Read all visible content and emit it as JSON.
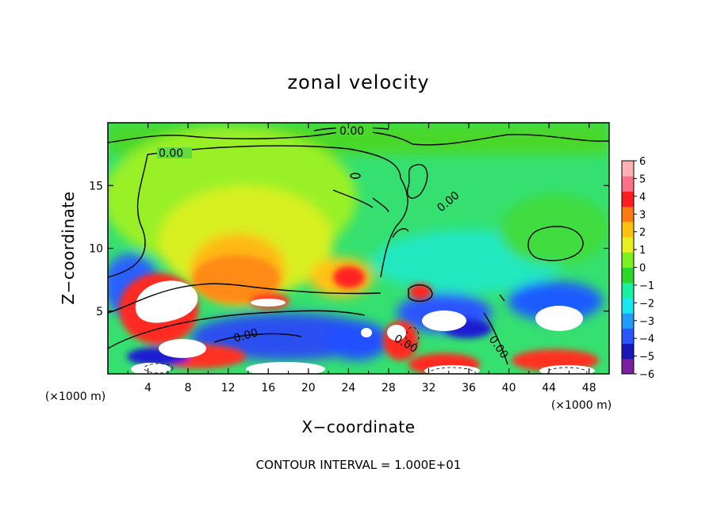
{
  "chart_data": {
    "type": "heatmap",
    "title": "zonal velocity",
    "xlabel": "X−coordinate",
    "ylabel": "Z−coordinate",
    "x_unit_label": "(×1000 m)",
    "y_unit_label": "(×1000 m)",
    "x_ticks": [
      4,
      8,
      12,
      16,
      20,
      24,
      28,
      32,
      36,
      40,
      44,
      48
    ],
    "y_ticks": [
      5,
      10,
      15
    ],
    "xlim": [
      0,
      50
    ],
    "ylim": [
      0,
      20
    ],
    "footer_note": "CONTOUR INTERVAL = 1.000E+01",
    "colorbar": {
      "ticks": [
        "6",
        "5",
        "4",
        "3",
        "2",
        "1",
        "0",
        "−1",
        "−2",
        "−3",
        "−4",
        "−5",
        "−6"
      ],
      "range": [
        -6,
        6
      ],
      "colors": [
        "#7a1fa0",
        "#1818b8",
        "#2b55ff",
        "#1f9cff",
        "#18e8f0",
        "#19f0a0",
        "#2ad82a",
        "#7cf020",
        "#e8f020",
        "#ffc210",
        "#ff7a10",
        "#ff1c20",
        "#ff6f8a",
        "#ffb0b0"
      ]
    },
    "contour_labels": [
      "0.00",
      "0.00",
      "0.00",
      "0.00",
      "0.00",
      "0.00"
    ],
    "regions": [
      {
        "x": 25,
        "z": 14,
        "value": 0.8
      },
      {
        "x": 14,
        "z": 8.5,
        "value": 3
      },
      {
        "x": 25,
        "z": 7.5,
        "value": 3.5
      },
      {
        "x": 5,
        "z": 5.5,
        "value": 6
      },
      {
        "x": 19,
        "z": 3,
        "value": -3.5
      },
      {
        "x": 36,
        "z": 4.5,
        "value": -3.5
      },
      {
        "x": 47,
        "z": 7,
        "value": -3
      }
    ]
  }
}
